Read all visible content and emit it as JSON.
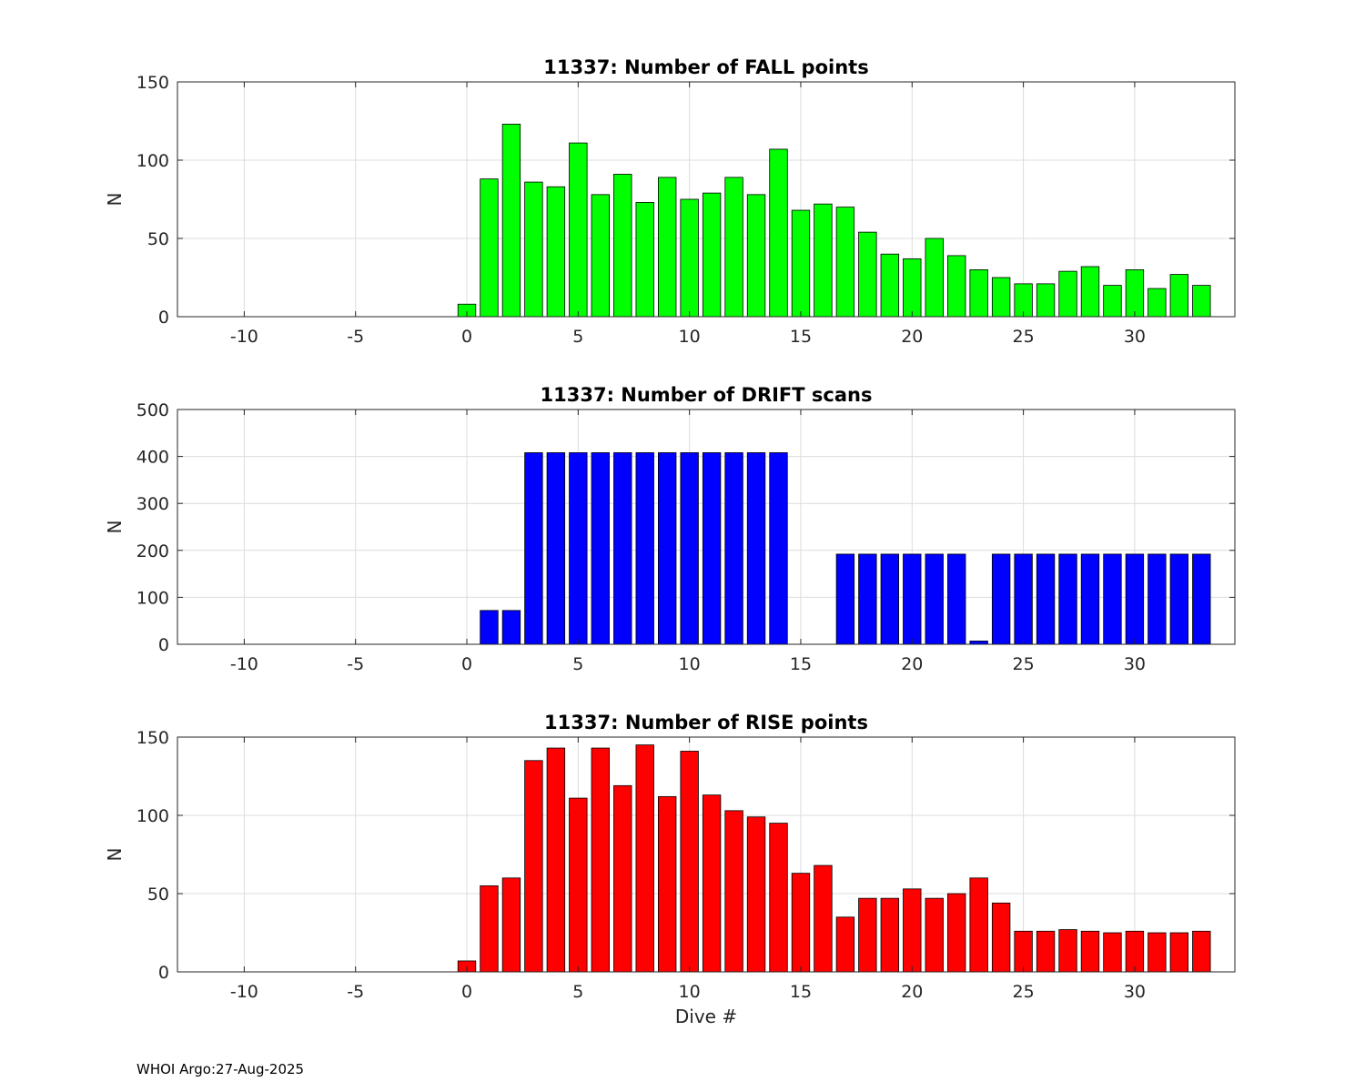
{
  "footer": "WHOI Argo:27-Aug-2025",
  "chart_data": [
    {
      "type": "bar",
      "title": "11337: Number of FALL points",
      "xlabel": "",
      "ylabel": "N",
      "xlim": [
        -13,
        34.5
      ],
      "ylim": [
        0,
        150
      ],
      "xticks": [
        "-10",
        "-5",
        "0",
        "5",
        "10",
        "15",
        "20",
        "25",
        "30"
      ],
      "yticks": [
        "0",
        "50",
        "100",
        "150"
      ],
      "grid": true,
      "color": "#00ff00",
      "x": [
        0,
        1,
        2,
        3,
        4,
        5,
        6,
        7,
        8,
        9,
        10,
        11,
        12,
        13,
        14,
        15,
        16,
        17,
        18,
        19,
        20,
        21,
        22,
        23,
        24,
        25,
        26,
        27,
        28,
        29,
        30,
        31,
        32,
        33
      ],
      "values": [
        8,
        88,
        123,
        86,
        83,
        111,
        78,
        91,
        73,
        89,
        75,
        79,
        89,
        78,
        107,
        68,
        72,
        70,
        54,
        40,
        37,
        50,
        39,
        30,
        25,
        21,
        21,
        29,
        32,
        20,
        30,
        18,
        27,
        20
      ]
    },
    {
      "type": "bar",
      "title": "11337: Number of DRIFT scans",
      "xlabel": "",
      "ylabel": "N",
      "xlim": [
        -13,
        34.5
      ],
      "ylim": [
        0,
        500
      ],
      "xticks": [
        "-10",
        "-5",
        "0",
        "5",
        "10",
        "15",
        "20",
        "25",
        "30"
      ],
      "yticks": [
        "0",
        "100",
        "200",
        "300",
        "400",
        "500"
      ],
      "grid": true,
      "color": "#0000ff",
      "x": [
        -12,
        -11,
        0,
        1,
        2,
        3,
        4,
        5,
        6,
        7,
        8,
        9,
        10,
        11,
        12,
        13,
        14,
        15,
        16,
        17,
        18,
        19,
        20,
        21,
        22,
        23,
        24,
        25,
        26,
        27,
        28,
        29,
        30,
        31,
        32,
        33
      ],
      "values": [
        0,
        0,
        0,
        72,
        72,
        408,
        408,
        408,
        408,
        408,
        408,
        408,
        408,
        408,
        408,
        408,
        408,
        0,
        0,
        192,
        192,
        192,
        192,
        192,
        192,
        7,
        192,
        192,
        192,
        192,
        192,
        192,
        192,
        192,
        192,
        192
      ]
    },
    {
      "type": "bar",
      "title": "11337: Number of RISE points",
      "xlabel": "Dive #",
      "ylabel": "N",
      "xlim": [
        -13,
        34.5
      ],
      "ylim": [
        0,
        150
      ],
      "xticks": [
        "-10",
        "-5",
        "0",
        "5",
        "10",
        "15",
        "20",
        "25",
        "30"
      ],
      "yticks": [
        "0",
        "50",
        "100",
        "150"
      ],
      "grid": true,
      "color": "#ff0000",
      "x": [
        0,
        1,
        2,
        3,
        4,
        5,
        6,
        7,
        8,
        9,
        10,
        11,
        12,
        13,
        14,
        15,
        16,
        17,
        18,
        19,
        20,
        21,
        22,
        23,
        24,
        25,
        26,
        27,
        28,
        29,
        30,
        31,
        32,
        33
      ],
      "values": [
        7,
        55,
        60,
        135,
        143,
        111,
        143,
        119,
        145,
        112,
        141,
        113,
        103,
        99,
        95,
        63,
        68,
        35,
        47,
        47,
        53,
        47,
        50,
        60,
        44,
        26,
        26,
        27,
        26,
        25,
        26,
        25,
        25,
        26
      ]
    }
  ]
}
